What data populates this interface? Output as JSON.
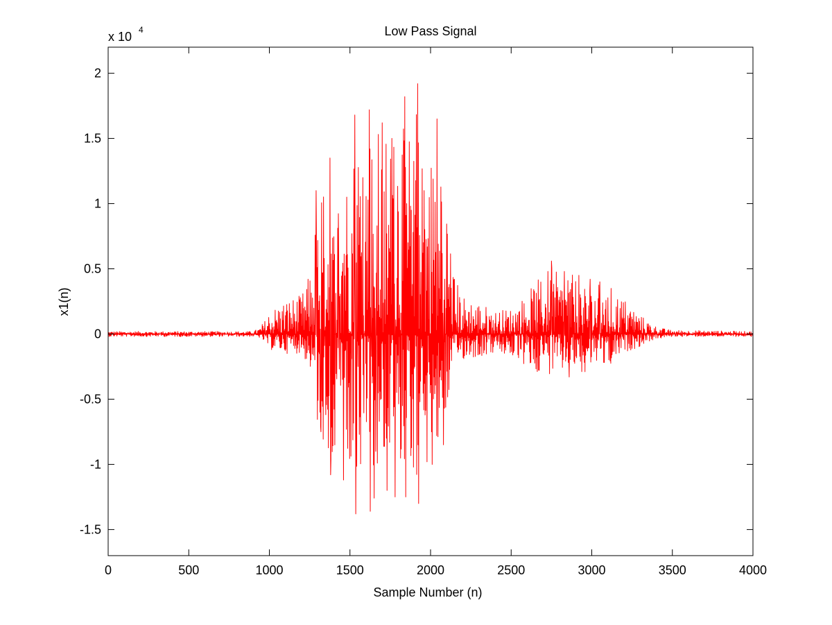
{
  "chart_data": {
    "type": "line",
    "title": "Low Pass Signal",
    "xlabel": "Sample Number (n)",
    "ylabel": "x1(n)",
    "y_multiplier": {
      "base": "x 10",
      "exponent": "4"
    },
    "xlim": [
      0,
      4000
    ],
    "ylim": [
      -1.7,
      2.2
    ],
    "grid": false,
    "x_ticks": [
      0,
      500,
      1000,
      1500,
      2000,
      2500,
      3000,
      3500,
      4000
    ],
    "x_tick_labels": [
      "0",
      "500",
      "1000",
      "1500",
      "2000",
      "2500",
      "3000",
      "3500",
      "4000"
    ],
    "y_ticks": [
      -1.5,
      -1,
      -0.5,
      0,
      0.5,
      1,
      1.5,
      2
    ],
    "y_tick_labels": [
      "-1.5",
      "-1",
      "-0.5",
      "0",
      "0.5",
      "1",
      "1.5",
      "2"
    ],
    "series": [
      {
        "color": "#ff0000",
        "envelope": {
          "x": [
            0,
            900,
            940,
            980,
            1000,
            1100,
            1200,
            1260,
            1300,
            1350,
            1400,
            1450,
            1500,
            1550,
            1600,
            1650,
            1700,
            1750,
            1800,
            1850,
            1900,
            1950,
            2000,
            2050,
            2100,
            2150,
            2200,
            2300,
            2400,
            2500,
            2550,
            2600,
            2650,
            2700,
            2750,
            2800,
            2850,
            2900,
            2950,
            3000,
            3050,
            3100,
            3150,
            3200,
            3250,
            3300,
            3350,
            3400,
            3450,
            3500,
            4000
          ],
          "y_max": [
            0.02,
            0.02,
            0.05,
            0.12,
            0.18,
            0.27,
            0.3,
            0.5,
            1.1,
            1.35,
            0.9,
            1.45,
            1.35,
            1.68,
            1.72,
            1.55,
            1.62,
            1.5,
            1.82,
            1.45,
            1.92,
            1.3,
            1.45,
            1.7,
            1.1,
            0.45,
            0.3,
            0.25,
            0.18,
            0.2,
            0.25,
            0.32,
            0.4,
            0.45,
            0.56,
            0.42,
            0.48,
            0.44,
            0.4,
            0.42,
            0.38,
            0.35,
            0.33,
            0.28,
            0.22,
            0.15,
            0.1,
            0.06,
            0.04,
            0.03,
            0.02
          ],
          "y_min": [
            -0.02,
            -0.02,
            -0.03,
            -0.08,
            -0.12,
            -0.15,
            -0.15,
            -0.3,
            -0.75,
            -0.9,
            -1.08,
            -0.6,
            -1.12,
            -1.38,
            -0.85,
            -1.36,
            -0.9,
            -1.2,
            -1.25,
            -0.95,
            -1.1,
            -1.3,
            -1.0,
            -0.85,
            -0.6,
            -0.25,
            -0.2,
            -0.18,
            -0.15,
            -0.18,
            -0.22,
            -0.28,
            -0.3,
            -0.28,
            -0.32,
            -0.3,
            -0.33,
            -0.28,
            -0.3,
            -0.25,
            -0.22,
            -0.25,
            -0.2,
            -0.15,
            -0.12,
            -0.1,
            -0.06,
            -0.04,
            -0.03,
            -0.02,
            -0.02
          ]
        },
        "peaks": [
          [
            1290,
            1.1
          ],
          [
            1320,
            -0.75
          ],
          [
            1340,
            0.58
          ],
          [
            1375,
            1.35
          ],
          [
            1380,
            -1.08
          ],
          [
            1430,
            0.62
          ],
          [
            1460,
            -1.12
          ],
          [
            1480,
            1.05
          ],
          [
            1530,
            1.68
          ],
          [
            1535,
            -1.38
          ],
          [
            1580,
            1.2
          ],
          [
            1620,
            1.72
          ],
          [
            1625,
            -1.36
          ],
          [
            1660,
            -0.9
          ],
          [
            1700,
            1.62
          ],
          [
            1730,
            -1.2
          ],
          [
            1760,
            1.5
          ],
          [
            1780,
            -1.25
          ],
          [
            1840,
            1.82
          ],
          [
            1845,
            -1.25
          ],
          [
            1880,
            0.95
          ],
          [
            1920,
            1.92
          ],
          [
            1925,
            -1.3
          ],
          [
            1960,
            1.1
          ],
          [
            2010,
            -1.0
          ],
          [
            2040,
            1.65
          ],
          [
            2080,
            -0.85
          ],
          [
            2750,
            0.56
          ],
          [
            2830,
            0.48
          ],
          [
            2860,
            -0.33
          ],
          [
            2920,
            0.45
          ],
          [
            2990,
            0.42
          ],
          [
            3050,
            0.4
          ],
          [
            3120,
            0.35
          ]
        ]
      }
    ]
  }
}
